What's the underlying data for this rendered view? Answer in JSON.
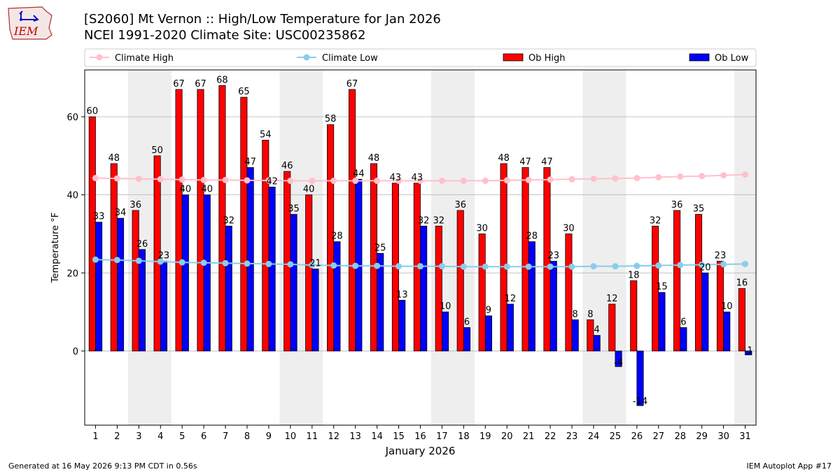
{
  "title": "[S2060] Mt Vernon :: High/Low Temperature for Jan 2026",
  "subtitle": "NCEI 1991-2020 Climate Site: USC00235862",
  "logo_text": "IEM",
  "footer_left": "Generated at 16 May 2026 9:13 PM CDT in 0.56s",
  "footer_right": "IEM Autoplot App #17",
  "colors": {
    "ob_high": "#ff0000",
    "ob_low": "#0000ff",
    "climate_high": "#ffc0cb",
    "climate_low": "#87ceeb",
    "weekend_shading": "#eeeeee",
    "grid": "#b0b0b0"
  },
  "chart_data": {
    "type": "bar",
    "xlabel": "January 2026",
    "ylabel": "Temperature °F",
    "ylim": [
      -19,
      72
    ],
    "yticks": [
      0,
      20,
      40,
      60
    ],
    "grid": "horizontal",
    "legend_position": "top",
    "legend": [
      "Climate High",
      "Climate Low",
      "Ob High",
      "Ob Low"
    ],
    "shaded_days": [
      3,
      4,
      10,
      11,
      17,
      18,
      24,
      25,
      31
    ],
    "categories": [
      1,
      2,
      3,
      4,
      5,
      6,
      7,
      8,
      9,
      10,
      11,
      12,
      13,
      14,
      15,
      16,
      17,
      18,
      19,
      20,
      21,
      22,
      23,
      24,
      25,
      26,
      27,
      28,
      29,
      30,
      31
    ],
    "series": [
      {
        "name": "Ob High",
        "kind": "bar",
        "values": [
          60,
          48,
          36,
          50,
          67,
          67,
          68,
          65,
          54,
          46,
          40,
          58,
          67,
          48,
          43,
          43,
          32,
          36,
          30,
          48,
          47,
          47,
          30,
          8,
          12,
          18,
          32,
          36,
          35,
          23,
          16
        ]
      },
      {
        "name": "Ob Low",
        "kind": "bar",
        "values": [
          33,
          34,
          26,
          23,
          40,
          40,
          32,
          47,
          42,
          35,
          21,
          28,
          44,
          25,
          13,
          32,
          10,
          6,
          9,
          12,
          28,
          23,
          8,
          4,
          -4,
          -14,
          15,
          6,
          20,
          10,
          -1
        ]
      },
      {
        "name": "Climate High",
        "kind": "line",
        "values": [
          44.3,
          44.2,
          44.1,
          44.0,
          43.9,
          43.8,
          43.8,
          43.7,
          43.7,
          43.6,
          43.6,
          43.6,
          43.6,
          43.6,
          43.6,
          43.6,
          43.6,
          43.6,
          43.6,
          43.7,
          43.8,
          43.9,
          44.0,
          44.1,
          44.2,
          44.3,
          44.5,
          44.7,
          44.8,
          45.0,
          45.2
        ]
      },
      {
        "name": "Climate Low",
        "kind": "line",
        "values": [
          23.4,
          23.3,
          23.1,
          22.9,
          22.7,
          22.6,
          22.5,
          22.4,
          22.3,
          22.2,
          22.0,
          21.9,
          21.8,
          21.8,
          21.7,
          21.7,
          21.7,
          21.6,
          21.6,
          21.6,
          21.6,
          21.6,
          21.6,
          21.7,
          21.7,
          21.8,
          21.9,
          22.0,
          22.1,
          22.2,
          22.3
        ]
      }
    ]
  }
}
